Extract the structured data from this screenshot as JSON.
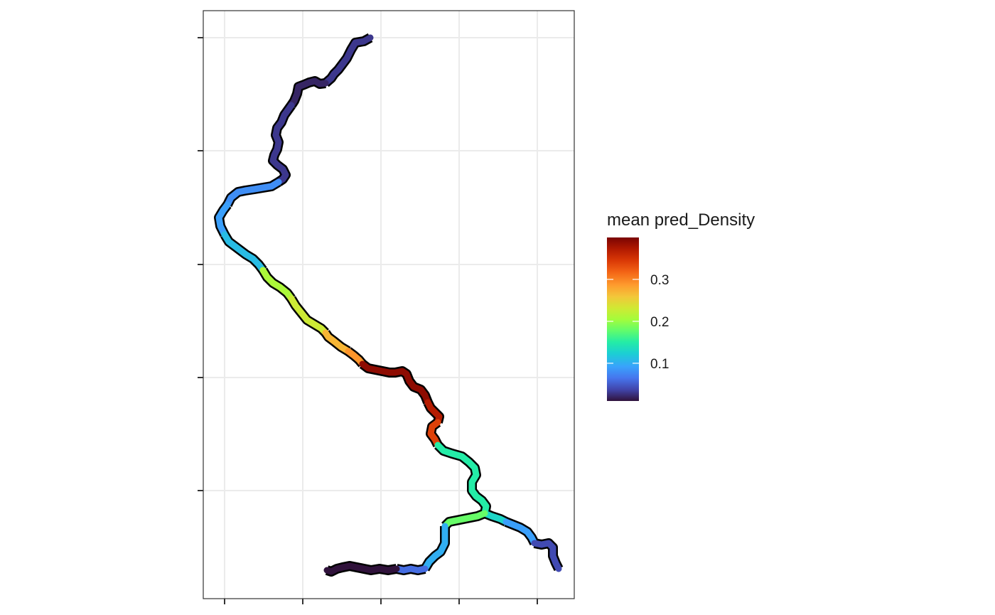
{
  "chart_data": {
    "type": "map",
    "description": "",
    "x_ticks": [
      null,
      null,
      null,
      null,
      null
    ],
    "y_ticks": [
      null,
      null,
      null,
      null,
      null
    ],
    "grid": true,
    "legend": {
      "title": "mean pred_Density",
      "placement": "right",
      "colormap": "turbo",
      "range": [
        0.01,
        0.4
      ],
      "ticks": [
        {
          "value": 0.1,
          "label": "0.1"
        },
        {
          "value": 0.2,
          "label": "0.2"
        },
        {
          "value": 0.3,
          "label": "0.3"
        }
      ]
    },
    "segments": [
      {
        "id": "upper-reach-1",
        "value": 0.03
      },
      {
        "id": "upper-reach-2",
        "value": 0.02
      },
      {
        "id": "upper-reach-3",
        "value": 0.03
      },
      {
        "id": "upper-reach-4",
        "value": 0.08
      },
      {
        "id": "bend-west-1",
        "value": 0.09
      },
      {
        "id": "bend-west-2",
        "value": 0.11
      },
      {
        "id": "mid-reach-1",
        "value": 0.21
      },
      {
        "id": "mid-reach-2",
        "value": 0.23
      },
      {
        "id": "mid-reach-3",
        "value": 0.27
      },
      {
        "id": "mid-reach-4",
        "value": 0.29
      },
      {
        "id": "high-reach-1",
        "value": 0.39
      },
      {
        "id": "high-reach-2",
        "value": 0.37
      },
      {
        "id": "high-reach-3",
        "value": 0.34
      },
      {
        "id": "confluence-reach",
        "value": 0.15
      },
      {
        "id": "east-branch-1",
        "value": 0.13
      },
      {
        "id": "east-branch-2",
        "value": 0.09
      },
      {
        "id": "east-branch-3",
        "value": 0.04
      },
      {
        "id": "south-branch-1",
        "value": 0.18
      },
      {
        "id": "south-branch-2",
        "value": 0.1
      },
      {
        "id": "south-branch-3",
        "value": 0.06
      },
      {
        "id": "south-branch-4",
        "value": 0.01
      }
    ]
  }
}
